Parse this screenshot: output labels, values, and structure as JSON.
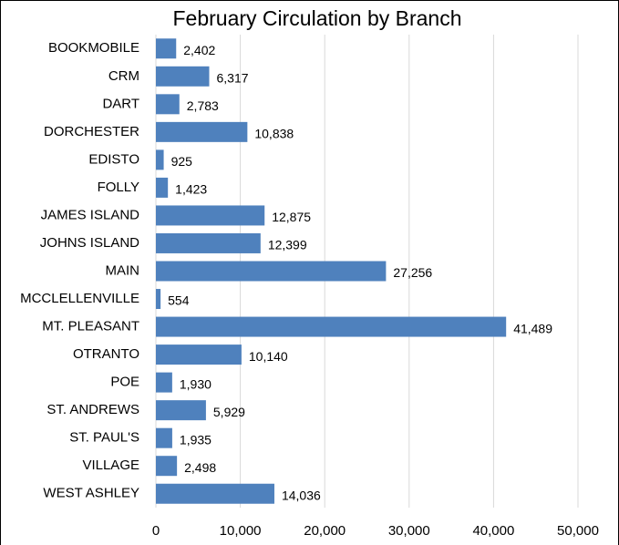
{
  "chart_data": {
    "type": "barh",
    "title": "February Circulation by Branch",
    "categories": [
      "BOOKMOBILE",
      "CRM",
      "DART",
      "DORCHESTER",
      "EDISTO",
      "FOLLY",
      "JAMES ISLAND",
      "JOHNS ISLAND",
      "MAIN",
      "MCCLELLENVILLE",
      "MT. PLEASANT",
      "OTRANTO",
      "POE",
      "ST. ANDREWS",
      "ST. PAUL'S",
      "VILLAGE",
      "WEST ASHLEY"
    ],
    "values": [
      2402,
      6317,
      2783,
      10838,
      925,
      1423,
      12875,
      12399,
      27256,
      554,
      41489,
      10140,
      1930,
      5929,
      1935,
      2498,
      14036
    ],
    "value_labels": [
      "2,402",
      "6,317",
      "2,783",
      "10,838",
      "925",
      "1,423",
      "12,875",
      "12,399",
      "27,256",
      "554",
      "41,489",
      "10,140",
      "1,930",
      "5,929",
      "1,935",
      "2,498",
      "14,036"
    ],
    "color": "#4f81bd",
    "xlim": [
      0,
      50000
    ],
    "xticks": [
      0,
      {
        "value": 10000,
        "label": "10,000"
      },
      {
        "value": 20000,
        "label": "20,000"
      },
      {
        "value": 30000,
        "label": "30,000"
      },
      {
        "value": 40000,
        "label": "40,000"
      },
      {
        "value": 50000,
        "label": "50,000"
      }
    ],
    "grid": true
  }
}
